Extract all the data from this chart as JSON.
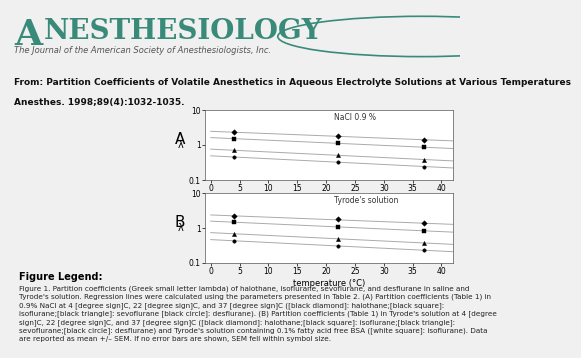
{
  "header_title_A": "A",
  "header_title_rest": "NESTHESIOLOGY",
  "header_subtitle": "The Journal of the American Society of Anesthesiologists, Inc.",
  "source_line1": "From: Partition Coefficients of Volatile Anesthetics in Aqueous Electrolyte Solutions at Various Temperatures",
  "source_line2": "Anesthes. 1998;89(4):1032-1035.",
  "panel_A_label": "NaCl 0.9 %",
  "panel_B_label": "Tyrode's solution",
  "panel_A_letter": "A",
  "panel_B_letter": "B",
  "xlabel": "temperature (°C)",
  "ylabel": "λ",
  "temperatures": [
    4,
    22,
    37
  ],
  "panel_A": {
    "halothane": [
      2.3,
      1.8,
      1.4
    ],
    "isoflurane": [
      1.5,
      1.15,
      0.85
    ],
    "sevoflurane": [
      0.7,
      0.52,
      0.38
    ],
    "desflurane": [
      0.45,
      0.33,
      0.24
    ]
  },
  "panel_B": {
    "halothane": [
      2.2,
      1.75,
      1.35
    ],
    "isoflurane": [
      1.45,
      1.1,
      0.82
    ],
    "sevoflurane": [
      0.68,
      0.5,
      0.37
    ],
    "desflurane": [
      0.43,
      0.31,
      0.23
    ]
  },
  "ylim_log": [
    0.1,
    10
  ],
  "xlim": [
    -1,
    42
  ],
  "xticks": [
    0,
    5,
    10,
    15,
    20,
    25,
    30,
    35,
    40
  ],
  "yticks_log": [
    0.1,
    1,
    10
  ],
  "teal_color": "#3a8a7a",
  "line_color": "#aaaaaa",
  "marker_color": "#000000",
  "fig_bg": "#f0f0f0",
  "header_bg": "#ffffff",
  "source_bg": "#e0e0e0",
  "legend_title": "Figure Legend:",
  "legend_body_line1": "Figure 1. Partition coefficients (Greek small letter lambda) of halothane, isoflurane, sevoflurane, and desflurane in saline and",
  "legend_body_line2": "Tyrode's solution. Regression lines were calculated using the parameters presented in Table 2. (A) Partition coefficients (Table 1) in",
  "legend_body_line3": "0.9% NaCl at 4 [degree sign]C, 22 [degree sign]C, and 37 [degree sign]C ([black diamond]: halothane;[black square]:",
  "legend_body_line4": "isoflurane;[black triangle]: sevoflurane [black circle]: desflurane). (B) Partition coefficients (Table 1) in Tyrode's solution at 4 [degree",
  "legend_body_line5": "sign]C, 22 [degree sign]C, and 37 [degree sign]C ([black diamond]: halothane;[black square]: isoflurane;[black triangle]:",
  "legend_body_line6": "sevoflurane;[black circle]: desflurane) and Tyrode's solution containing 0.1% fatty acid free BSA ([white square]: isoflurane). Data",
  "legend_body_line7": "are reported as mean +/– SEM. If no error bars are shown, SEM fell within symbol size."
}
